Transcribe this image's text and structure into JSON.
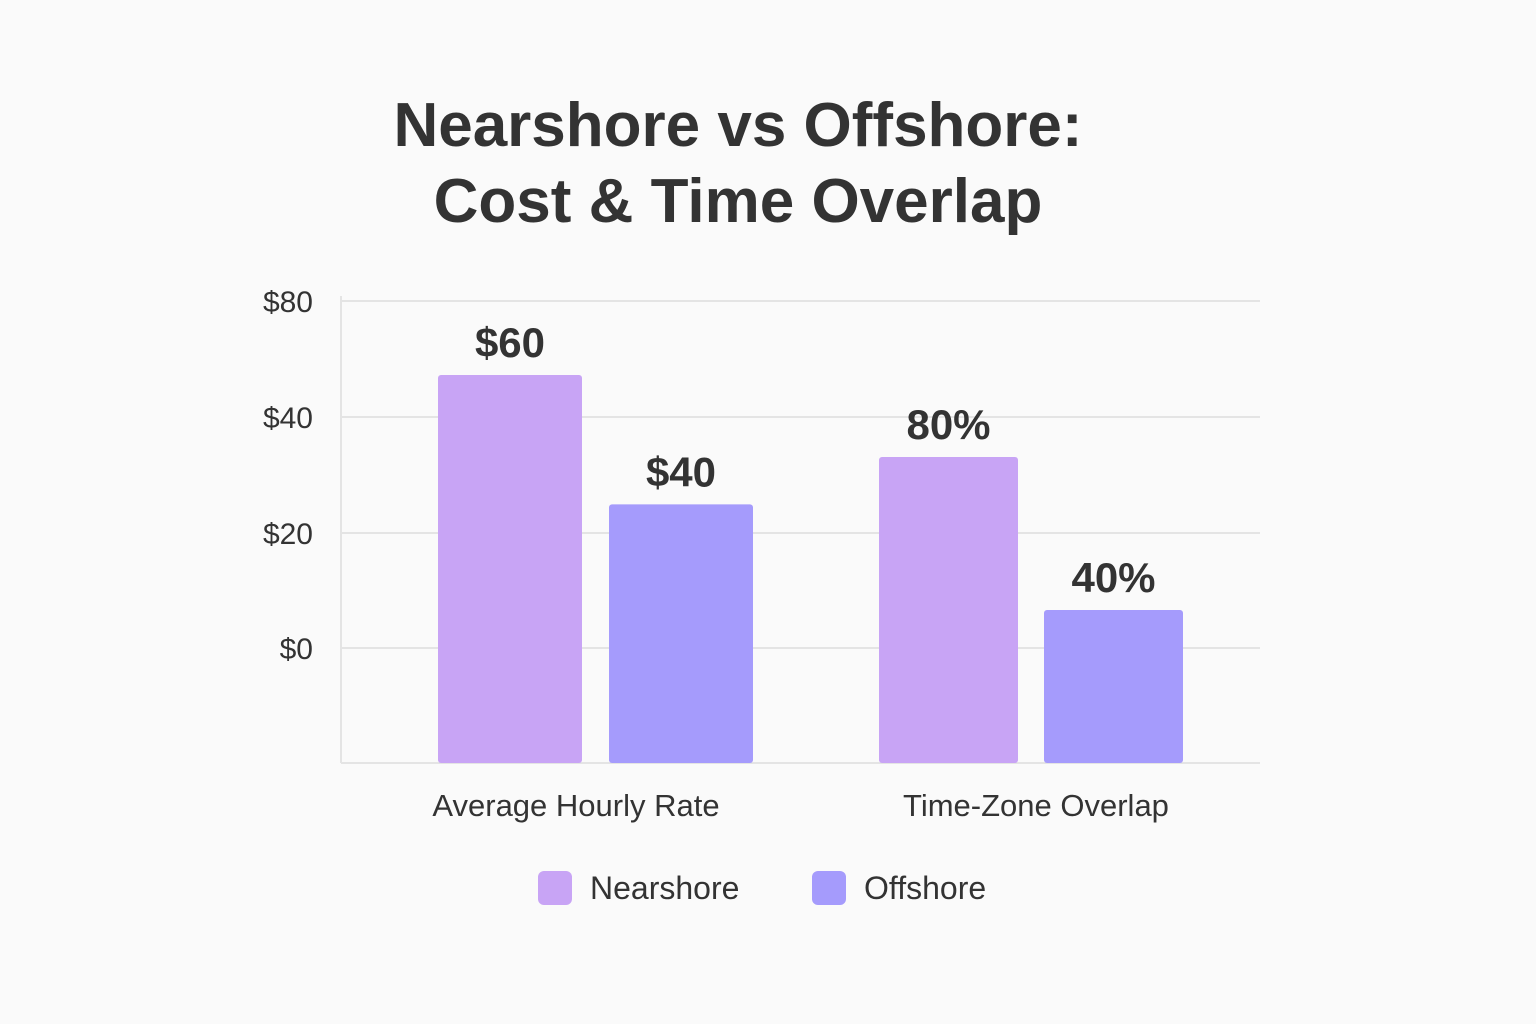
{
  "title_lines": [
    "Nearshore vs Offshore:",
    "Cost & Time Overlap"
  ],
  "colors": {
    "nearshore": "#c8a4f5",
    "offshore": "#a59bfc",
    "text": "#333333",
    "grid": "#e4e4e4"
  },
  "chart_data": {
    "type": "bar",
    "title": "Nearshore vs Offshore: Cost & Time Overlap",
    "categories": [
      "Average Hourly Rate",
      "Time-Zone Overlap"
    ],
    "series": [
      {
        "name": "Nearshore",
        "values": [
          60,
          80
        ],
        "labels": [
          "$60",
          "80%"
        ]
      },
      {
        "name": "Offshore",
        "values": [
          40,
          40
        ],
        "labels": [
          "$40",
          "40%"
        ]
      }
    ],
    "yticks": [
      "$0",
      "$20",
      "$40",
      "$80"
    ],
    "grid": true,
    "legend": "bottom-center"
  },
  "legend": [
    {
      "label": "Nearshore",
      "color": "#c8a4f5"
    },
    {
      "label": "Offshore",
      "color": "#a59bfc"
    }
  ]
}
